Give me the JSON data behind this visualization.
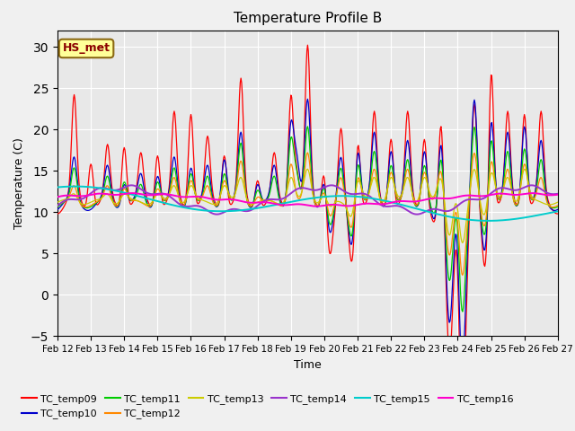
{
  "title": "Temperature Profile B",
  "xlabel": "Time",
  "ylabel": "Temperature (C)",
  "ylim": [
    -5,
    32
  ],
  "xlim": [
    0,
    360
  ],
  "x_tick_labels": [
    "Feb 12",
    "Feb 13",
    "Feb 14",
    "Feb 15",
    "Feb 16",
    "Feb 17",
    "Feb 18",
    "Feb 19",
    "Feb 20",
    "Feb 21",
    "Feb 22",
    "Feb 23",
    "Feb 24",
    "Feb 25",
    "Feb 26",
    "Feb 27"
  ],
  "x_tick_positions": [
    0,
    24,
    48,
    72,
    96,
    120,
    144,
    168,
    192,
    216,
    240,
    264,
    288,
    312,
    336,
    360
  ],
  "annotation_text": "HS_met",
  "series_colors": {
    "TC_temp09": "#ff0000",
    "TC_temp10": "#0000cc",
    "TC_temp11": "#00cc00",
    "TC_temp12": "#ff8800",
    "TC_temp13": "#cccc00",
    "TC_temp14": "#9933cc",
    "TC_temp15": "#00cccc",
    "TC_temp16": "#ff00cc"
  },
  "background_color": "#e8e8e8",
  "grid_color": "#ffffff",
  "fig_bg_color": "#f0f0f0",
  "yticks": [
    -5,
    0,
    5,
    10,
    15,
    20,
    25,
    30
  ],
  "title_fontsize": 11,
  "axis_fontsize": 9,
  "tick_fontsize": 7.5,
  "legend_fontsize": 8
}
